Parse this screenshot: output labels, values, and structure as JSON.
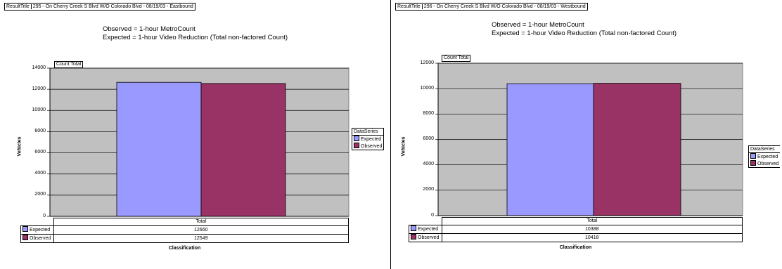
{
  "colors": {
    "expected": "#9999ff",
    "observed": "#993366",
    "plot_bg": "#c0c0c0"
  },
  "chart_data": [
    {
      "type": "bar",
      "result_title_label": "ResultTitle",
      "title": "295 - On Cherry Creek S Blvd W/O Colorado Blvd - 08/19/03 - Eastbound",
      "subtitle_lines": [
        "Observed = 1-hour MetroCount",
        "Expected = 1-hour Video Reduction (Total non-factored Count)"
      ],
      "count_total_label": "Count Total",
      "ylabel": "Vehicles",
      "xlabel": "Classification",
      "categories": [
        "Total"
      ],
      "ylim": [
        0,
        14000
      ],
      "yticks": [
        0,
        2000,
        4000,
        6000,
        8000,
        10000,
        12000,
        14000
      ],
      "legend_title": "DataSeries",
      "series": [
        {
          "name": "Expected",
          "values": [
            12660
          ]
        },
        {
          "name": "Observed",
          "values": [
            12549
          ]
        }
      ]
    },
    {
      "type": "bar",
      "result_title_label": "ResultTitle",
      "title": "296 - On Cherry Creek S Blvd W/O Colorado Blvd - 08/19/03 - Westbound",
      "subtitle_lines": [
        "Observed = 1-hour MetroCount",
        "Expected = 1-hour Video Reduction (Total non-factored Count)"
      ],
      "count_total_label": "Count Total",
      "ylabel": "Vehicles",
      "xlabel": "Classification",
      "categories": [
        "Total"
      ],
      "ylim": [
        0,
        12000
      ],
      "yticks": [
        0,
        2000,
        4000,
        6000,
        8000,
        10000,
        12000
      ],
      "legend_title": "DataSeries",
      "series": [
        {
          "name": "Expected",
          "values": [
            10388
          ]
        },
        {
          "name": "Observed",
          "values": [
            10418
          ]
        }
      ]
    }
  ]
}
